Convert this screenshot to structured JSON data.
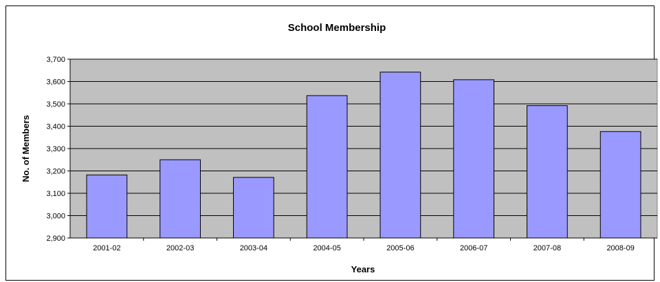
{
  "chart_data": {
    "type": "bar",
    "title": "School Membership",
    "xlabel": "Years",
    "ylabel": "No. of Members",
    "categories": [
      "2001-02",
      "2002-03",
      "2003-04",
      "2004-05",
      "2005-06",
      "2006-07",
      "2007-08",
      "2008-09"
    ],
    "values": [
      3182,
      3250,
      3171,
      3537,
      3642,
      3608,
      3492,
      3376
    ],
    "ylim": [
      2900,
      3700
    ],
    "yticks": [
      "2,900",
      "3,000",
      "3,100",
      "3,200",
      "3,300",
      "3,400",
      "3,500",
      "3,600",
      "3,700"
    ],
    "grid": true,
    "legend": "none",
    "colors": {
      "bar_fill": "#9999ff",
      "bar_stroke": "#000000",
      "plot_background": "#c0c0c0",
      "gridline": "#000000"
    }
  }
}
